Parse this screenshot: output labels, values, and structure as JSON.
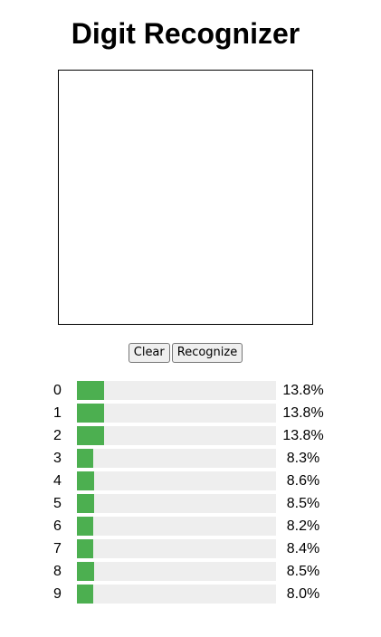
{
  "app": {
    "title": "Digit Recognizer"
  },
  "controls": {
    "clear_label": "Clear",
    "recognize_label": "Recognize"
  },
  "predictions": [
    {
      "digit": "0",
      "percent_label": "13.8%",
      "fraction": 0.138
    },
    {
      "digit": "1",
      "percent_label": "13.8%",
      "fraction": 0.138
    },
    {
      "digit": "2",
      "percent_label": "13.8%",
      "fraction": 0.138
    },
    {
      "digit": "3",
      "percent_label": "8.3%",
      "fraction": 0.083
    },
    {
      "digit": "4",
      "percent_label": "8.6%",
      "fraction": 0.086
    },
    {
      "digit": "5",
      "percent_label": "8.5%",
      "fraction": 0.085
    },
    {
      "digit": "6",
      "percent_label": "8.2%",
      "fraction": 0.082
    },
    {
      "digit": "7",
      "percent_label": "8.4%",
      "fraction": 0.084
    },
    {
      "digit": "8",
      "percent_label": "8.5%",
      "fraction": 0.085
    },
    {
      "digit": "9",
      "percent_label": "8.0%",
      "fraction": 0.08
    }
  ],
  "colors": {
    "bar_fill": "#4caf50",
    "bar_track": "#eeeeee"
  }
}
